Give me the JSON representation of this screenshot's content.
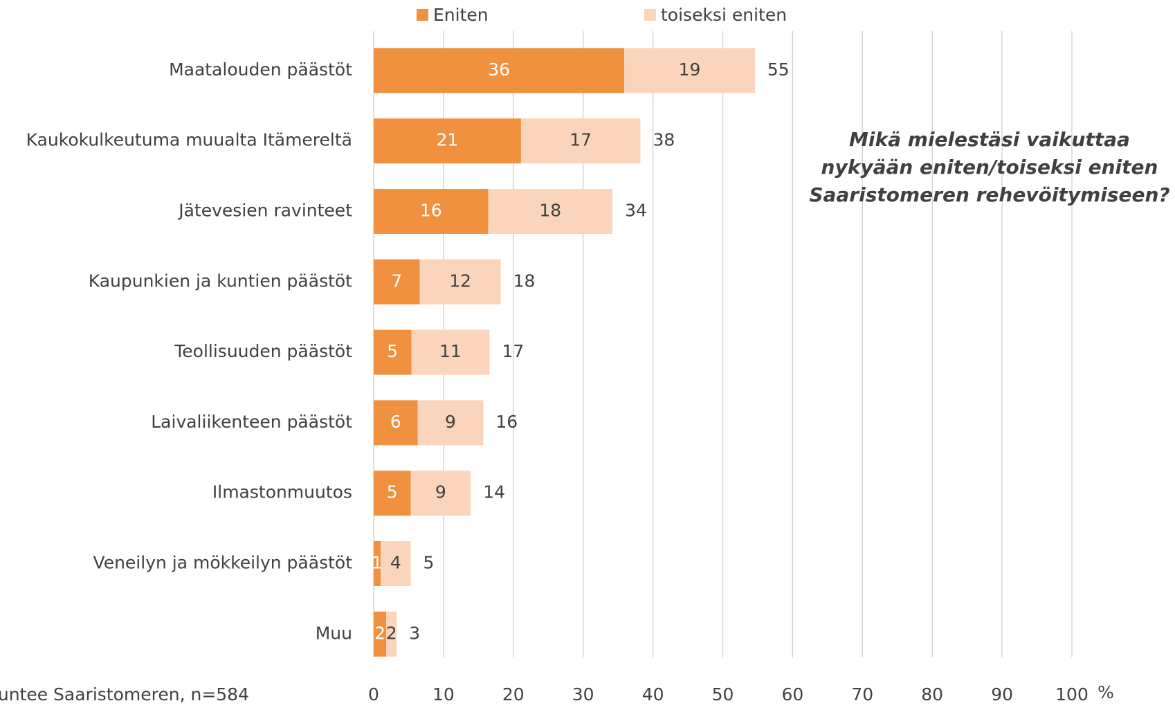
{
  "chart_data": {
    "type": "stacked_barh",
    "title_lines": [
      "Mikä mielestäsi vaikuttaa",
      "nykyään eniten/toiseksi eniten",
      "Saaristomeren rehevöitymiseen?"
    ],
    "source": "untee Saaristomeren, n=584",
    "x_unit": "%",
    "categories": [
      "Maatalouden päästöt",
      "Kaukokulkeutuma muualta Itämereltä",
      "Jätevesien ravinteet",
      "Kaupunkien ja kuntien päästöt",
      "Teollisuuden päästöt",
      "Laivaliikenteen päästöt",
      "Ilmastonmuutos",
      "Veneilyn ja mökkeilyn päästöt",
      "Muu"
    ],
    "series": [
      {
        "name": "Eniten",
        "color": "#f0913f",
        "label_color": "#ffffff",
        "values": [
          35.9,
          21.1,
          16.4,
          6.6,
          5.4,
          6.3,
          5.3,
          1.0,
          1.8
        ],
        "value_labels": [
          "36",
          "21",
          "16",
          "7",
          "5",
          "6",
          "5",
          "1",
          "2"
        ]
      },
      {
        "name": "toiseksi eniten",
        "color": "#fbd5bb",
        "label_color": "#404040",
        "values": [
          18.7,
          17.1,
          17.8,
          11.6,
          11.2,
          9.4,
          8.6,
          4.3,
          1.5
        ],
        "value_labels": [
          "19",
          "17",
          "18",
          "12",
          "11",
          "9",
          "9",
          "4",
          "2"
        ]
      }
    ],
    "total_labels": [
      "55",
      "38",
      "34",
      "18",
      "17",
      "16",
      "14",
      "5",
      "3"
    ],
    "xlim": [
      0,
      100
    ],
    "xticks": [
      0,
      10,
      20,
      30,
      40,
      50,
      60,
      70,
      80,
      90,
      100
    ],
    "grid": true,
    "legend": "top"
  }
}
